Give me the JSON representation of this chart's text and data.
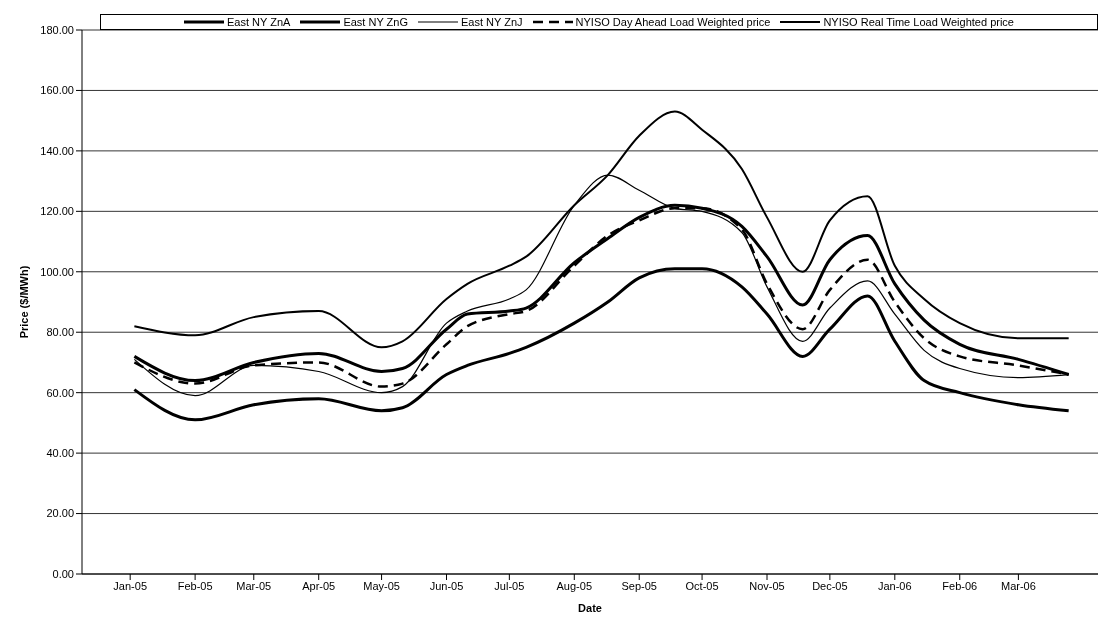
{
  "chart_data": {
    "type": "line",
    "xlabel": "Date",
    "ylabel": "Price ($/MWh)",
    "x": [
      "2005-01-03",
      "2005-02-01",
      "2005-03-01",
      "2005-04-01",
      "2005-05-01",
      "2005-05-11",
      "2005-06-01",
      "2005-06-11",
      "2005-07-01",
      "2005-07-09",
      "2005-08-01",
      "2005-08-17",
      "2005-09-01",
      "2005-09-18",
      "2005-10-01",
      "2005-10-20",
      "2005-11-01",
      "2005-11-18",
      "2005-12-01",
      "2005-12-19",
      "2006-01-01",
      "2006-01-15",
      "2006-02-01",
      "2006-03-01",
      "2006-03-25"
    ],
    "series": [
      {
        "name": "East NY ZnA",
        "color": "#000000",
        "values": [
          61,
          51,
          56,
          58,
          54,
          55,
          66,
          69,
          73,
          75,
          83,
          90,
          98,
          101,
          101,
          95,
          86,
          72,
          81,
          92,
          77,
          64,
          60,
          56,
          54
        ]
      },
      {
        "name": "East NY ZnG",
        "color": "#000000",
        "values": [
          72,
          64,
          70,
          73,
          67,
          68,
          81,
          86,
          87,
          88,
          103,
          111,
          118,
          122,
          121,
          115,
          105,
          89,
          104,
          112,
          96,
          84,
          76,
          71,
          66
        ]
      },
      {
        "name": "East NY ZnJ",
        "color": "#000000",
        "values": [
          71,
          59,
          69,
          67,
          60,
          62,
          83,
          87,
          91,
          94,
          122,
          132,
          127,
          121,
          120,
          113,
          95,
          77,
          88,
          97,
          86,
          74,
          68,
          65,
          66
        ]
      },
      {
        "name": "NYISO Day Ahead Load Weighted price",
        "color": "#000000",
        "line_style": "dashed",
        "values": [
          70,
          63,
          69,
          70,
          62,
          63,
          76,
          82,
          86,
          87,
          102,
          112,
          117,
          121,
          121,
          114,
          96,
          81,
          94,
          104,
          90,
          78,
          72,
          69,
          66
        ]
      },
      {
        "name": "NYISO Real Time Load Weighted price",
        "color": "#000000",
        "values": [
          82,
          79,
          85,
          87,
          75,
          77,
          91,
          96,
          102,
          105,
          122,
          132,
          145,
          153,
          147,
          134,
          118,
          100,
          117,
          125,
          102,
          91,
          83,
          78,
          78
        ]
      }
    ],
    "xlim": [
      "2004-12-09",
      "2006-04-08"
    ],
    "xticks": [
      {
        "value": "2005-01-01",
        "label": "Jan-05"
      },
      {
        "value": "2005-02-01",
        "label": "Feb-05"
      },
      {
        "value": "2005-03-01",
        "label": "Mar-05"
      },
      {
        "value": "2005-04-01",
        "label": "Apr-05"
      },
      {
        "value": "2005-05-01",
        "label": "May-05"
      },
      {
        "value": "2005-06-01",
        "label": "Jun-05"
      },
      {
        "value": "2005-07-01",
        "label": "Jul-05"
      },
      {
        "value": "2005-08-01",
        "label": "Aug-05"
      },
      {
        "value": "2005-09-01",
        "label": "Sep-05"
      },
      {
        "value": "2005-10-01",
        "label": "Oct-05"
      },
      {
        "value": "2005-11-01",
        "label": "Nov-05"
      },
      {
        "value": "2005-12-01",
        "label": "Dec-05"
      },
      {
        "value": "2006-01-01",
        "label": "Jan-06"
      },
      {
        "value": "2006-02-01",
        "label": "Feb-06"
      },
      {
        "value": "2006-03-01",
        "label": "Mar-06"
      }
    ],
    "ylim": [
      0,
      180
    ],
    "yticks": [
      {
        "value": 0,
        "label": "0.00"
      },
      {
        "value": 20,
        "label": "20.00"
      },
      {
        "value": 40,
        "label": "40.00"
      },
      {
        "value": 60,
        "label": "60.00"
      },
      {
        "value": 80,
        "label": "80.00"
      },
      {
        "value": 100,
        "label": "100.00"
      },
      {
        "value": 120,
        "label": "120.00"
      },
      {
        "value": 140,
        "label": "140.00"
      },
      {
        "value": 160,
        "label": "160.00"
      },
      {
        "value": 180,
        "label": "180.00"
      }
    ],
    "grid": "y",
    "legend": "top",
    "marker": "none",
    "line_style": "solid"
  }
}
